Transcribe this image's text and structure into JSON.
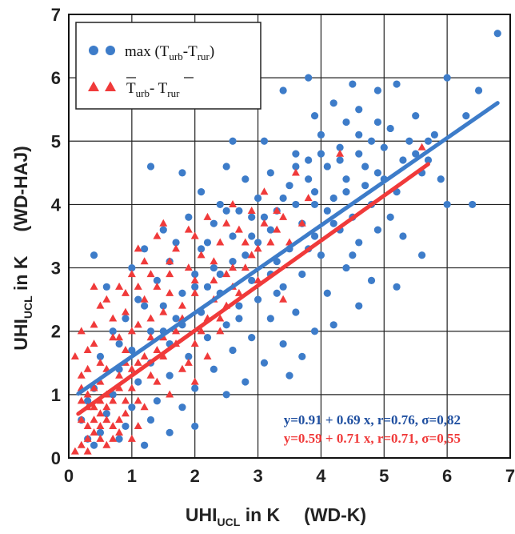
{
  "chart_data": {
    "type": "scatter",
    "xlabel": {
      "main": "UHI",
      "sub": "UCL",
      "rest": " in K",
      "station": "(WD-K)"
    },
    "ylabel": {
      "main": "UHI",
      "sub": "UCL",
      "rest": " in K",
      "station": "(WD-HAJ)"
    },
    "xlim": [
      0,
      7
    ],
    "ylim": [
      0,
      7
    ],
    "xticks": [
      "0",
      "1",
      "2",
      "3",
      "4",
      "5",
      "6",
      "7"
    ],
    "yticks": [
      "0",
      "1",
      "2",
      "3",
      "4",
      "5",
      "6",
      "7"
    ],
    "grid": true,
    "legend_position": "top-left",
    "series": [
      {
        "name": "max (T_urb-T_rur)",
        "legend": {
          "pre": "max (T",
          "sub1": "urb",
          "mid": "-T",
          "sub2": "rur",
          "post": ")"
        },
        "marker": "circle",
        "color": "#3d7cc9",
        "regression": {
          "intercept": 0.91,
          "slope": 0.69,
          "x_range": [
            0.15,
            6.8
          ]
        },
        "equation": "y=0.91 + 0.69 x, r=0.76,  σ=0,82",
        "points": [
          [
            6.8,
            6.7
          ],
          [
            3.8,
            6.0
          ],
          [
            6.0,
            6.0
          ],
          [
            5.2,
            5.9
          ],
          [
            4.5,
            5.9
          ],
          [
            3.4,
            5.8
          ],
          [
            4.9,
            5.8
          ],
          [
            6.5,
            5.8
          ],
          [
            4.2,
            5.6
          ],
          [
            4.6,
            5.5
          ],
          [
            5.5,
            5.4
          ],
          [
            3.9,
            5.4
          ],
          [
            4.4,
            5.3
          ],
          [
            5.1,
            5.2
          ],
          [
            4.0,
            5.1
          ],
          [
            4.8,
            5.0
          ],
          [
            2.6,
            5.0
          ],
          [
            3.1,
            5.0
          ],
          [
            5.7,
            5.0
          ],
          [
            4.3,
            4.9
          ],
          [
            3.6,
            4.8
          ],
          [
            4.6,
            4.8
          ],
          [
            5.3,
            4.7
          ],
          [
            3.8,
            4.7
          ],
          [
            4.1,
            4.6
          ],
          [
            1.3,
            4.6
          ],
          [
            2.5,
            4.6
          ],
          [
            4.9,
            4.5
          ],
          [
            3.2,
            4.5
          ],
          [
            5.6,
            4.5
          ],
          [
            1.8,
            4.5
          ],
          [
            2.8,
            4.4
          ],
          [
            4.4,
            4.4
          ],
          [
            5.9,
            4.4
          ],
          [
            3.5,
            4.3
          ],
          [
            4.7,
            4.3
          ],
          [
            2.1,
            4.2
          ],
          [
            3.9,
            4.2
          ],
          [
            5.2,
            4.2
          ],
          [
            3.0,
            4.1
          ],
          [
            4.2,
            4.1
          ],
          [
            6.0,
            4.0
          ],
          [
            2.4,
            4.0
          ],
          [
            3.6,
            4.0
          ],
          [
            4.8,
            4.0
          ],
          [
            2.7,
            3.9
          ],
          [
            6.4,
            4.0
          ],
          [
            4.1,
            3.9
          ],
          [
            3.3,
            3.9
          ],
          [
            5.1,
            3.8
          ],
          [
            1.9,
            3.8
          ],
          [
            2.9,
            3.8
          ],
          [
            4.5,
            3.8
          ],
          [
            3.7,
            3.7
          ],
          [
            2.3,
            3.7
          ],
          [
            4.9,
            3.6
          ],
          [
            0.4,
            3.2
          ],
          [
            1.5,
            3.6
          ],
          [
            3.2,
            3.6
          ],
          [
            4.3,
            3.6
          ],
          [
            2.6,
            3.5
          ],
          [
            3.9,
            3.5
          ],
          [
            5.3,
            3.5
          ],
          [
            1.7,
            3.4
          ],
          [
            3.0,
            3.4
          ],
          [
            4.6,
            3.4
          ],
          [
            2.1,
            3.3
          ],
          [
            3.5,
            3.3
          ],
          [
            1.2,
            3.3
          ],
          [
            4.0,
            3.2
          ],
          [
            2.8,
            3.2
          ],
          [
            5.6,
            3.2
          ],
          [
            1.6,
            3.1
          ],
          [
            3.3,
            3.1
          ],
          [
            2.3,
            3.0
          ],
          [
            4.4,
            3.0
          ],
          [
            1.0,
            3.0
          ],
          [
            3.7,
            2.9
          ],
          [
            2.0,
            2.9
          ],
          [
            2.9,
            2.8
          ],
          [
            4.8,
            2.8
          ],
          [
            1.4,
            2.8
          ],
          [
            3.4,
            2.7
          ],
          [
            0.6,
            2.7
          ],
          [
            5.2,
            2.7
          ],
          [
            2.4,
            2.6
          ],
          [
            1.8,
            2.6
          ],
          [
            4.1,
            2.6
          ],
          [
            3.0,
            2.5
          ],
          [
            1.1,
            2.5
          ],
          [
            2.7,
            2.4
          ],
          [
            4.6,
            2.4
          ],
          [
            1.5,
            2.4
          ],
          [
            3.6,
            2.3
          ],
          [
            2.1,
            2.3
          ],
          [
            0.9,
            2.2
          ],
          [
            3.2,
            2.2
          ],
          [
            1.8,
            2.1
          ],
          [
            2.5,
            2.1
          ],
          [
            4.2,
            2.1
          ],
          [
            1.3,
            2.0
          ],
          [
            3.9,
            2.0
          ],
          [
            0.7,
            2.0
          ],
          [
            2.9,
            1.9
          ],
          [
            2.2,
            1.9
          ],
          [
            1.6,
            1.8
          ],
          [
            3.4,
            1.8
          ],
          [
            1.0,
            1.7
          ],
          [
            2.6,
            1.7
          ],
          [
            0.5,
            1.6
          ],
          [
            3.7,
            1.6
          ],
          [
            1.9,
            1.6
          ],
          [
            1.3,
            1.5
          ],
          [
            3.1,
            1.5
          ],
          [
            2.3,
            1.4
          ],
          [
            0.8,
            1.4
          ],
          [
            3.5,
            1.3
          ],
          [
            1.6,
            1.3
          ],
          [
            2.8,
            1.2
          ],
          [
            1.1,
            1.2
          ],
          [
            0.4,
            1.1
          ],
          [
            2.0,
            1.1
          ],
          [
            0.7,
            1.0
          ],
          [
            1.4,
            0.9
          ],
          [
            0.3,
            0.9
          ],
          [
            2.5,
            1.0
          ],
          [
            1.0,
            0.8
          ],
          [
            1.8,
            0.8
          ],
          [
            0.6,
            0.7
          ],
          [
            0.2,
            0.6
          ],
          [
            1.3,
            0.6
          ],
          [
            0.9,
            0.5
          ],
          [
            0.5,
            0.4
          ],
          [
            2.0,
            0.5
          ],
          [
            0.3,
            0.3
          ],
          [
            1.6,
            0.4
          ],
          [
            0.8,
            0.3
          ],
          [
            1.2,
            0.2
          ],
          [
            0.4,
            0.2
          ],
          [
            5.0,
            4.9
          ],
          [
            4.3,
            4.7
          ],
          [
            3.4,
            4.1
          ],
          [
            5.5,
            4.8
          ],
          [
            4.7,
            4.6
          ],
          [
            3.8,
            4.4
          ],
          [
            5.8,
            5.1
          ],
          [
            4.0,
            4.8
          ],
          [
            2.2,
            3.4
          ],
          [
            2.5,
            3.9
          ],
          [
            3.1,
            3.8
          ],
          [
            4.4,
            4.2
          ],
          [
            3.3,
            2.6
          ],
          [
            2.0,
            2.7
          ],
          [
            1.7,
            2.2
          ],
          [
            2.6,
            3.1
          ],
          [
            3.8,
            3.3
          ],
          [
            4.2,
            3.7
          ],
          [
            5.0,
            4.4
          ],
          [
            1.2,
            2.4
          ],
          [
            2.9,
            3.5
          ],
          [
            3.6,
            4.6
          ],
          [
            4.9,
            5.3
          ],
          [
            5.4,
            5.0
          ],
          [
            4.6,
            5.1
          ],
          [
            3.9,
            4.0
          ],
          [
            2.4,
            2.9
          ],
          [
            1.5,
            2.0
          ],
          [
            0.8,
            1.8
          ],
          [
            2.7,
            2.2
          ],
          [
            3.2,
            2.9
          ],
          [
            4.5,
            3.2
          ],
          [
            5.7,
            4.7
          ],
          [
            6.3,
            5.4
          ],
          [
            2.2,
            2.7
          ]
        ]
      },
      {
        "name": "T_urb - T_rur (mean)",
        "legend": {
          "pre": "T",
          "sub1": "urb",
          "mid": "- T",
          "sub2": "rur",
          "post": ""
        },
        "marker": "triangle",
        "color": "#f03a3a",
        "regression": {
          "intercept": 0.59,
          "slope": 0.71,
          "x_range": [
            0.15,
            5.7
          ]
        },
        "equation": "y=0.59 + 0.71 x, r=0.71,  σ=0,55",
        "points": [
          [
            5.6,
            4.9
          ],
          [
            4.3,
            4.8
          ],
          [
            3.6,
            4.5
          ],
          [
            3.1,
            4.2
          ],
          [
            2.6,
            4.0
          ],
          [
            3.8,
            4.1
          ],
          [
            2.9,
            3.9
          ],
          [
            2.2,
            3.8
          ],
          [
            3.4,
            3.8
          ],
          [
            1.9,
            3.6
          ],
          [
            2.7,
            3.6
          ],
          [
            1.4,
            3.5
          ],
          [
            2.4,
            3.4
          ],
          [
            3.2,
            3.4
          ],
          [
            1.7,
            3.3
          ],
          [
            2.1,
            3.2
          ],
          [
            2.9,
            3.2
          ],
          [
            1.2,
            3.1
          ],
          [
            1.9,
            3.0
          ],
          [
            2.6,
            3.0
          ],
          [
            1.0,
            2.9
          ],
          [
            1.6,
            2.9
          ],
          [
            2.3,
            2.8
          ],
          [
            3.0,
            2.8
          ],
          [
            0.8,
            2.7
          ],
          [
            1.4,
            2.7
          ],
          [
            2.0,
            2.6
          ],
          [
            2.7,
            2.6
          ],
          [
            0.6,
            2.5
          ],
          [
            1.2,
            2.5
          ],
          [
            1.8,
            2.4
          ],
          [
            2.5,
            2.4
          ],
          [
            3.4,
            2.5
          ],
          [
            0.9,
            2.3
          ],
          [
            1.5,
            2.3
          ],
          [
            2.2,
            2.2
          ],
          [
            0.4,
            2.1
          ],
          [
            1.1,
            2.1
          ],
          [
            1.7,
            2.0
          ],
          [
            2.4,
            2.0
          ],
          [
            0.7,
            1.9
          ],
          [
            1.3,
            1.9
          ],
          [
            2.0,
            1.8
          ],
          [
            0.3,
            1.7
          ],
          [
            0.9,
            1.7
          ],
          [
            1.5,
            1.6
          ],
          [
            2.2,
            1.6
          ],
          [
            0.5,
            1.5
          ],
          [
            1.1,
            1.5
          ],
          [
            1.8,
            1.4
          ],
          [
            0.2,
            1.3
          ],
          [
            0.8,
            1.3
          ],
          [
            1.4,
            1.2
          ],
          [
            2.0,
            1.2
          ],
          [
            0.4,
            1.1
          ],
          [
            1.0,
            1.1
          ],
          [
            1.6,
            1.0
          ],
          [
            0.2,
            0.9
          ],
          [
            0.7,
            0.9
          ],
          [
            1.2,
            0.8
          ],
          [
            0.4,
            0.8
          ],
          [
            0.9,
            0.7
          ],
          [
            0.2,
            0.6
          ],
          [
            0.6,
            0.6
          ],
          [
            1.1,
            0.5
          ],
          [
            0.3,
            0.5
          ],
          [
            0.8,
            0.4
          ],
          [
            0.5,
            0.3
          ],
          [
            1.0,
            0.3
          ],
          [
            0.2,
            0.2
          ],
          [
            0.6,
            0.2
          ],
          [
            0.3,
            0.1
          ],
          [
            0.1,
            0.1
          ],
          [
            0.4,
            0.4
          ],
          [
            0.7,
            0.5
          ],
          [
            0.5,
            0.7
          ],
          [
            0.3,
            0.8
          ],
          [
            0.6,
            1.0
          ],
          [
            0.2,
            1.1
          ],
          [
            0.5,
            1.2
          ],
          [
            0.3,
            1.4
          ],
          [
            0.1,
            1.6
          ],
          [
            0.4,
            1.8
          ],
          [
            0.2,
            2.0
          ],
          [
            0.6,
            1.4
          ],
          [
            0.8,
            1.1
          ],
          [
            1.0,
            1.4
          ],
          [
            1.3,
            1.3
          ],
          [
            1.1,
            0.9
          ],
          [
            0.9,
            1.5
          ],
          [
            1.4,
            1.7
          ],
          [
            1.7,
            1.8
          ],
          [
            1.9,
            1.5
          ],
          [
            2.1,
            2.0
          ],
          [
            2.4,
            2.2
          ],
          [
            2.6,
            2.7
          ],
          [
            2.8,
            3.0
          ],
          [
            3.0,
            3.3
          ],
          [
            3.3,
            3.6
          ],
          [
            3.5,
            3.4
          ],
          [
            3.7,
            3.7
          ],
          [
            1.6,
            2.6
          ],
          [
            1.3,
            2.2
          ],
          [
            1.0,
            2.0
          ],
          [
            0.8,
            1.9
          ],
          [
            1.2,
            1.6
          ],
          [
            1.5,
            1.9
          ],
          [
            1.8,
            2.2
          ],
          [
            2.3,
            2.5
          ],
          [
            2.5,
            2.9
          ],
          [
            2.0,
            2.8
          ],
          [
            1.6,
            3.1
          ],
          [
            1.3,
            2.9
          ],
          [
            1.1,
            2.7
          ],
          [
            0.7,
            2.2
          ],
          [
            0.5,
            2.4
          ],
          [
            0.9,
            2.6
          ],
          [
            0.4,
            2.7
          ],
          [
            1.1,
            3.3
          ],
          [
            1.5,
            3.7
          ],
          [
            2.0,
            3.5
          ],
          [
            2.3,
            3.1
          ],
          [
            2.8,
            3.4
          ],
          [
            3.1,
            3.7
          ],
          [
            3.3,
            3.9
          ],
          [
            2.5,
            3.7
          ],
          [
            0.3,
            0.3
          ],
          [
            0.5,
            0.5
          ],
          [
            0.7,
            0.3
          ],
          [
            0.9,
            0.9
          ],
          [
            0.4,
            0.6
          ],
          [
            0.6,
            0.8
          ],
          [
            0.8,
            0.6
          ],
          [
            0.3,
            1.0
          ],
          [
            0.5,
            0.9
          ]
        ]
      }
    ]
  }
}
